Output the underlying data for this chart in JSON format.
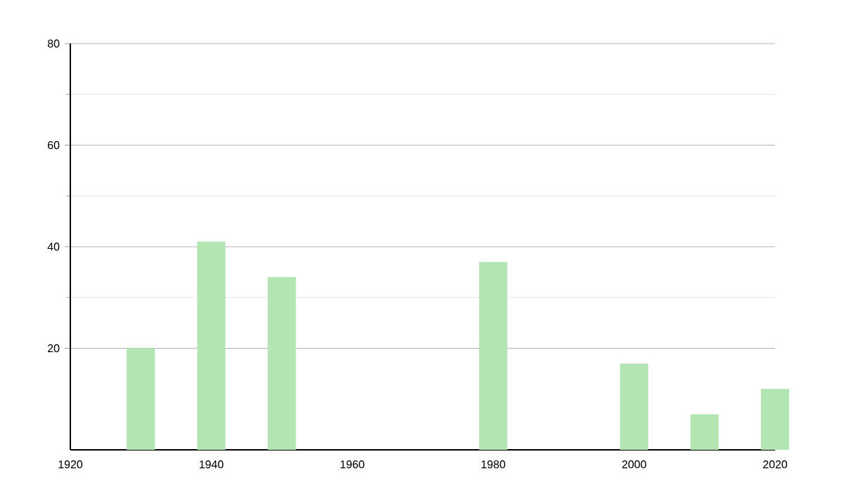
{
  "chart_data": {
    "type": "bar",
    "x": [
      1930,
      1940,
      1950,
      1980,
      2000,
      2010,
      2020
    ],
    "values": [
      20,
      41,
      34,
      37,
      17,
      7,
      12
    ],
    "color": "#b2e5b2",
    "xlim": [
      1920,
      2020
    ],
    "xticks": [
      1920,
      1940,
      1960,
      1980,
      2000,
      2020
    ],
    "ylim": [
      0,
      80
    ],
    "yticks": [
      20,
      40,
      60,
      80
    ],
    "grid": "y"
  }
}
